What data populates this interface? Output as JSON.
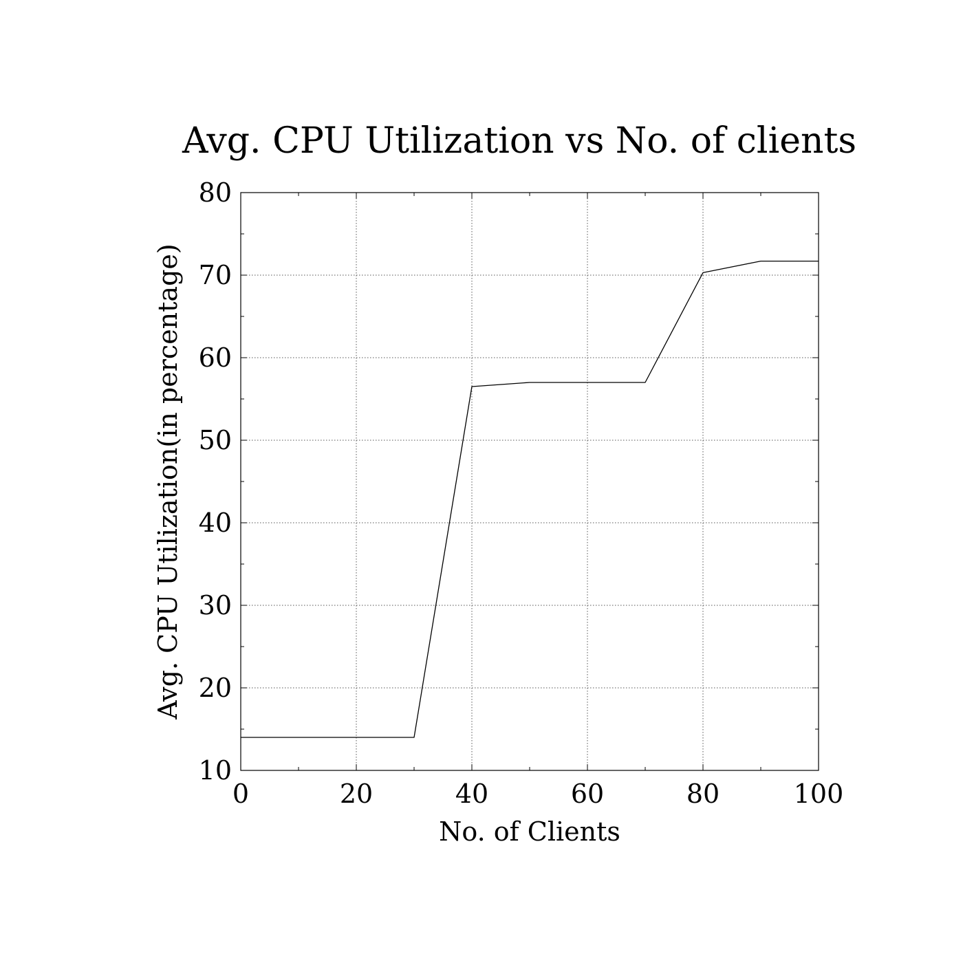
{
  "chart_data": {
    "type": "line",
    "title": "Avg. CPU Utilization vs No. of clients",
    "xlabel": "No. of Clients",
    "ylabel": "Avg. CPU Utilization(in percentage)",
    "xlim": [
      0,
      100
    ],
    "ylim": [
      10,
      80
    ],
    "xticks": [
      "0",
      "20",
      "40",
      "60",
      "80",
      "100"
    ],
    "yticks": [
      "10",
      "20",
      "30",
      "40",
      "50",
      "60",
      "70",
      "80"
    ],
    "grid": true,
    "legend": "none",
    "series": [
      {
        "x": [
          0,
          10,
          20,
          30,
          40,
          50,
          60,
          70,
          80,
          90,
          100
        ],
        "y": [
          14,
          14,
          14,
          14,
          56.5,
          57,
          57,
          57,
          70.3,
          71.7,
          71.7
        ],
        "color": "#000000"
      }
    ]
  }
}
